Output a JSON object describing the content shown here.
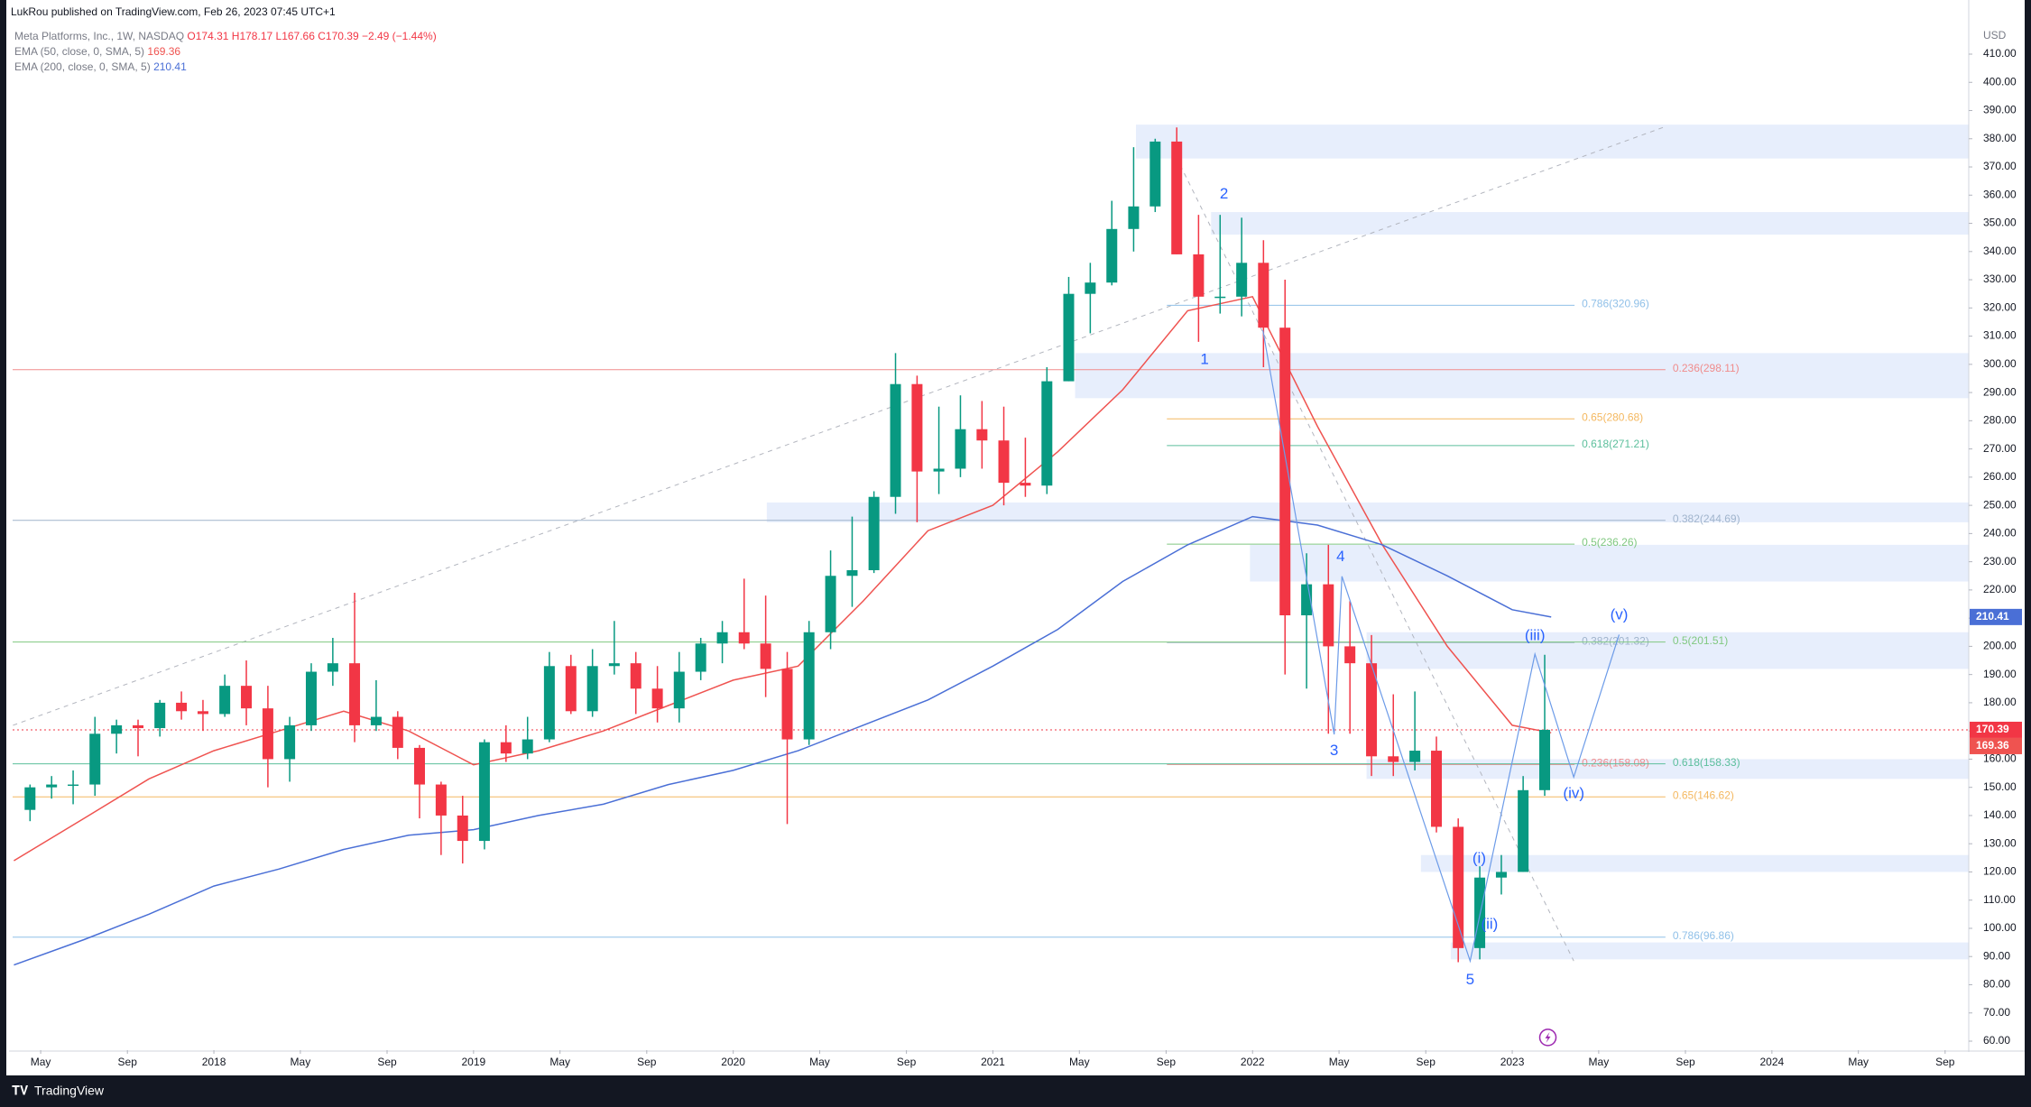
{
  "header": "LukRou published on TradingView.com, Feb 26, 2023 07:45 UTC+1",
  "footer_brand": "TradingView",
  "chart_data": {
    "type": "candlestick",
    "legend": {
      "symbol": "Meta Platforms, Inc., 1W, NASDAQ",
      "ohlc": [
        "O174.31",
        "H178.17",
        "L167.66",
        "C170.39",
        "−2.49 (−1.44%)"
      ]
    },
    "currency": "USD",
    "up_color": "#089981",
    "down_color": "#f23645",
    "x": [
      2017.292,
      2017.375,
      2017.458,
      2017.542,
      2017.625,
      2017.708,
      2017.792,
      2017.875,
      2017.958,
      2018.042,
      2018.125,
      2018.208,
      2018.292,
      2018.375,
      2018.458,
      2018.542,
      2018.625,
      2018.708,
      2018.792,
      2018.875,
      2018.958,
      2019.042,
      2019.125,
      2019.208,
      2019.292,
      2019.375,
      2019.458,
      2019.542,
      2019.625,
      2019.708,
      2019.792,
      2019.875,
      2019.958,
      2020.042,
      2020.125,
      2020.208,
      2020.292,
      2020.375,
      2020.458,
      2020.542,
      2020.625,
      2020.708,
      2020.792,
      2020.875,
      2020.958,
      2021.042,
      2021.125,
      2021.208,
      2021.292,
      2021.375,
      2021.458,
      2021.542,
      2021.625,
      2021.708,
      2021.792,
      2021.875,
      2021.958,
      2022.042,
      2022.125,
      2022.208,
      2022.292,
      2022.375,
      2022.458,
      2022.542,
      2022.625,
      2022.708,
      2022.792,
      2022.875,
      2022.958,
      2023.042,
      2023.125
    ],
    "open": [
      142,
      150,
      151,
      151,
      169,
      172,
      171,
      180,
      177,
      176,
      186,
      178,
      160,
      172,
      191,
      194,
      172,
      175,
      164,
      151,
      140,
      131,
      166,
      162,
      167,
      193,
      177,
      193,
      194,
      185,
      178,
      191,
      201,
      205,
      201,
      192,
      167,
      205,
      225,
      227,
      253,
      293,
      262,
      263,
      277,
      273,
      258,
      257,
      294,
      325,
      329,
      348,
      356,
      379,
      339,
      324,
      324,
      336,
      313,
      211,
      222,
      200,
      194,
      161,
      159,
      163,
      136,
      93,
      118,
      120,
      149
    ],
    "high": [
      151,
      154,
      156,
      175,
      174,
      174,
      181,
      184,
      181,
      190,
      195,
      186,
      175,
      194,
      203,
      219,
      188,
      177,
      165,
      152,
      147,
      167,
      172,
      175,
      198,
      197,
      199,
      209,
      198,
      193,
      198,
      203,
      209,
      224,
      218,
      198,
      209,
      234,
      246,
      255,
      304,
      296,
      285,
      289,
      287,
      285,
      274,
      299,
      331,
      336,
      358,
      377,
      380,
      384,
      353,
      353,
      352,
      344,
      330,
      233,
      236,
      216,
      204,
      183,
      184,
      168,
      139,
      122,
      126,
      154,
      197
    ],
    "low": [
      138,
      146,
      144,
      147,
      162,
      161,
      168,
      174,
      170,
      175,
      172,
      150,
      152,
      170,
      186,
      166,
      170,
      160,
      139,
      126,
      123,
      128,
      159,
      160,
      166,
      176,
      175,
      190,
      176,
      173,
      173,
      188,
      194,
      199,
      182,
      137,
      165,
      199,
      214,
      226,
      247,
      244,
      254,
      260,
      263,
      250,
      253,
      254,
      294,
      311,
      328,
      340,
      354,
      339,
      308,
      318,
      317,
      299,
      190,
      185,
      169,
      169,
      154,
      154,
      156,
      134,
      88,
      89,
      112,
      120,
      147
    ],
    "close": [
      150,
      151,
      151,
      169,
      172,
      171,
      180,
      177,
      176,
      186,
      178,
      160,
      172,
      191,
      194,
      172,
      175,
      164,
      151,
      140,
      131,
      166,
      162,
      167,
      193,
      177,
      193,
      194,
      185,
      178,
      191,
      201,
      205,
      201,
      192,
      167,
      205,
      225,
      227,
      253,
      293,
      262,
      263,
      277,
      273,
      258,
      257,
      294,
      325,
      329,
      348,
      356,
      379,
      339,
      324,
      324,
      336,
      313,
      211,
      222,
      200,
      194,
      161,
      159,
      163,
      136,
      93,
      118,
      120,
      149,
      170.39
    ],
    "series": [
      {
        "name": "EMA (50, close, 0, SMA, 5)",
        "color": "#ef5350",
        "x": [
          2017.23,
          2017.5,
          2017.75,
          2018.0,
          2018.25,
          2018.5,
          2018.75,
          2019.0,
          2019.25,
          2019.5,
          2019.75,
          2020.0,
          2020.25,
          2020.5,
          2020.75,
          2021.0,
          2021.25,
          2021.5,
          2021.75,
          2022.0,
          2022.25,
          2022.5,
          2022.75,
          2023.0,
          2023.15
        ],
        "values": [
          124,
          139,
          153,
          163,
          170,
          177,
          170,
          158,
          163,
          170,
          179,
          188,
          193,
          216,
          241,
          250,
          269,
          291,
          319,
          324,
          278,
          236,
          200,
          172,
          169.36
        ]
      },
      {
        "name": "EMA (200, close, 0, SMA, 5)",
        "color": "#4a6fd6",
        "x": [
          2017.23,
          2017.5,
          2017.75,
          2018.0,
          2018.25,
          2018.5,
          2018.75,
          2019.0,
          2019.25,
          2019.5,
          2019.75,
          2020.0,
          2020.25,
          2020.5,
          2020.75,
          2021.0,
          2021.25,
          2021.5,
          2021.75,
          2022.0,
          2022.25,
          2022.5,
          2022.75,
          2023.0,
          2023.15
        ],
        "values": [
          87,
          96,
          105,
          115,
          121,
          128,
          133,
          135,
          140,
          144,
          151,
          156,
          163,
          172,
          181,
          193,
          206,
          223,
          236,
          246,
          243,
          236,
          225,
          213,
          210.41
        ]
      }
    ],
    "fib_levels": [
      {
        "label": "0.786(320.96)",
        "value": 320.96,
        "color": "#90c0e8"
      },
      {
        "label": "0.236(298.11)",
        "value": 298.11,
        "color": "#f08c8c"
      },
      {
        "label": "0.65(280.68)",
        "value": 280.68,
        "color": "#f4b860"
      },
      {
        "label": "0.618(271.21)",
        "value": 271.21,
        "color": "#5cbf9c"
      },
      {
        "label": "0.382(244.69)",
        "value": 244.69,
        "color": "#a0b4cc"
      },
      {
        "label": "0.5(236.26)",
        "value": 236.26,
        "color": "#80c880"
      },
      {
        "label": "0.382(201.32)",
        "value": 201.32,
        "color": "#a0b4cc"
      },
      {
        "label": "0.5(201.51)",
        "value": 201.51,
        "color": "#80c880"
      },
      {
        "label": "0.236(158.08)",
        "value": 158.08,
        "color": "#f08c8c"
      },
      {
        "label": "0.618(158.33)",
        "value": 158.33,
        "color": "#5cbf9c"
      },
      {
        "label": "0.65(146.62)",
        "value": 146.62,
        "color": "#f4b860"
      },
      {
        "label": "0.786(96.86)",
        "value": 96.86,
        "color": "#90c0e8"
      }
    ],
    "wave_labels": [
      "1",
      "2",
      "3",
      "4",
      "5",
      "(i)",
      "(ii)",
      "(iii)",
      "(iv)",
      "(v)"
    ],
    "xlim": [
      2017.225,
      2024.758
    ],
    "ylim": [
      56.8,
      419.6
    ],
    "xticks": [
      {
        "value": 2017.333,
        "label": "May"
      },
      {
        "value": 2017.667,
        "label": "Sep"
      },
      2018,
      {
        "value": 2018.333,
        "label": "May"
      },
      {
        "value": 2018.667,
        "label": "Sep"
      },
      2019,
      {
        "value": 2019.333,
        "label": "May"
      },
      {
        "value": 2019.667,
        "label": "Sep"
      },
      2020,
      {
        "value": 2020.333,
        "label": "May"
      },
      {
        "value": 2020.667,
        "label": "Sep"
      },
      2021,
      {
        "value": 2021.333,
        "label": "May"
      },
      {
        "value": 2021.667,
        "label": "Sep"
      },
      2022,
      {
        "value": 2022.333,
        "label": "May"
      },
      {
        "value": 2022.667,
        "label": "Sep"
      },
      2023,
      {
        "value": 2023.333,
        "label": "May"
      },
      {
        "value": 2023.667,
        "label": "Sep"
      },
      2024,
      {
        "value": 2024.333,
        "label": "May"
      },
      {
        "value": 2024.667,
        "label": "Sep"
      }
    ],
    "yticks": [
      {
        "value": 60,
        "label": "60.00"
      },
      {
        "value": 70,
        "label": "70.00"
      },
      {
        "value": 80,
        "label": "80.00"
      },
      {
        "value": 90,
        "label": "90.00"
      },
      {
        "value": 100,
        "label": "100.00"
      },
      {
        "value": 110,
        "label": "110.00"
      },
      {
        "value": 120,
        "label": "120.00"
      },
      {
        "value": 130,
        "label": "130.00"
      },
      {
        "value": 140,
        "label": "140.00"
      },
      {
        "value": 150,
        "label": "150.00"
      },
      {
        "value": 160,
        "label": "160.00"
      },
      {
        "value": 170,
        "label": "170.00"
      },
      {
        "value": 180,
        "label": "180.00"
      },
      {
        "value": 190,
        "label": "190.00"
      },
      {
        "value": 200,
        "label": "200.00"
      },
      {
        "value": 210,
        "label": "210.00"
      },
      {
        "value": 220,
        "label": "220.00"
      },
      {
        "value": 230,
        "label": "230.00"
      },
      {
        "value": 240,
        "label": "240.00"
      },
      {
        "value": 250,
        "label": "250.00"
      },
      {
        "value": 260,
        "label": "260.00"
      },
      {
        "value": 270,
        "label": "270.00"
      },
      {
        "value": 280,
        "label": "280.00"
      },
      {
        "value": 290,
        "label": "290.00"
      },
      {
        "value": 300,
        "label": "300.00"
      },
      {
        "value": 310,
        "label": "310.00"
      },
      {
        "value": 320,
        "label": "320.00"
      },
      {
        "value": 330,
        "label": "330.00"
      },
      {
        "value": 340,
        "label": "340.00"
      },
      {
        "value": 350,
        "label": "350.00"
      },
      {
        "value": 360,
        "label": "360.00"
      },
      {
        "value": 370,
        "label": "370.00"
      },
      {
        "value": 380,
        "label": "380.00"
      },
      {
        "value": 390,
        "label": "390.00"
      },
      {
        "value": 400,
        "label": "400.00"
      },
      {
        "value": 410,
        "label": "410.00"
      }
    ],
    "grid": false
  }
}
